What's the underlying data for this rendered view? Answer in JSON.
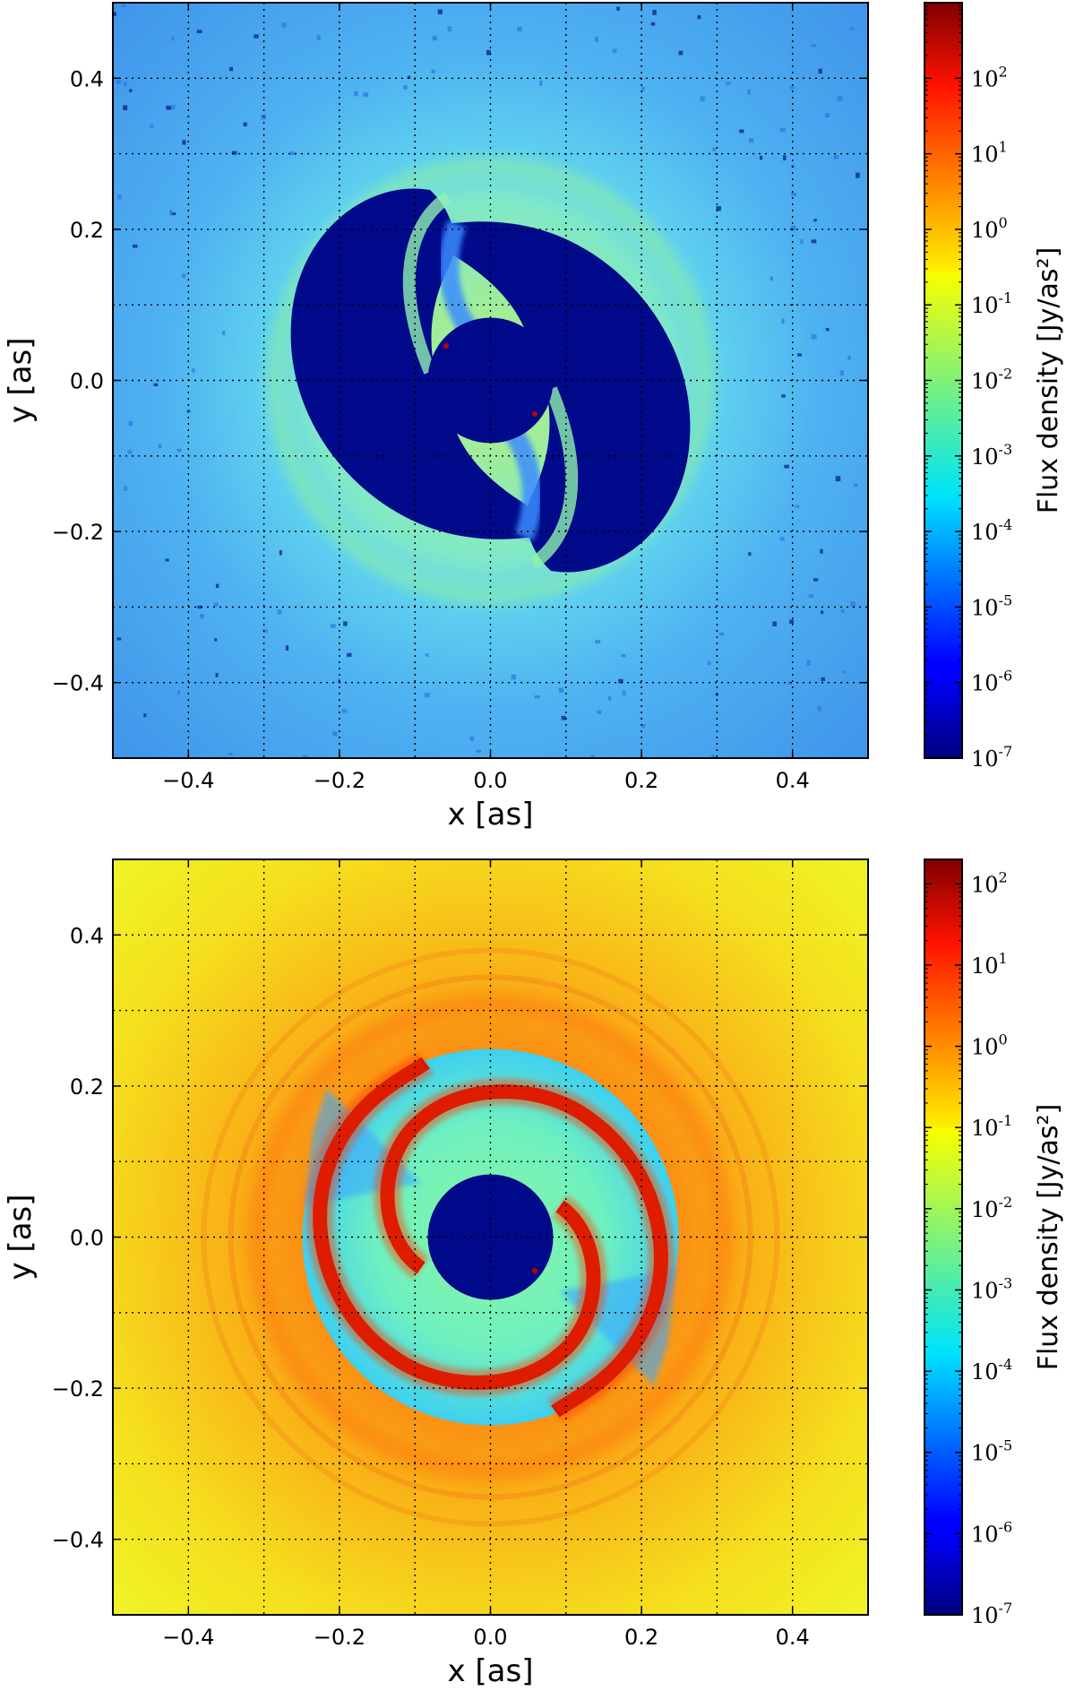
{
  "chart_data": [
    {
      "type": "heatmap",
      "xlabel": "x [as]",
      "ylabel": "y [as]",
      "xlim": [
        -0.5,
        0.5
      ],
      "ylim": [
        -0.5,
        0.5
      ],
      "x_ticks": [
        "−0.4",
        "−0.2",
        "0.0",
        "0.2",
        "0.4"
      ],
      "y_ticks": [
        "0.4",
        "0.2",
        "0.0",
        "−0.2",
        "−0.4"
      ],
      "grid": true,
      "colormap": "jet",
      "colorbar": {
        "label": "Flux density [Jy/as²]",
        "scale": "log",
        "range": [
          1e-07,
          1000
        ],
        "ticks": [
          {
            "base": "10",
            "exp": "2"
          },
          {
            "base": "10",
            "exp": "1"
          },
          {
            "base": "10",
            "exp": "0"
          },
          {
            "base": "10",
            "exp": "-1"
          },
          {
            "base": "10",
            "exp": "-2"
          },
          {
            "base": "10",
            "exp": "-3"
          },
          {
            "base": "10",
            "exp": "-4"
          },
          {
            "base": "10",
            "exp": "-5"
          },
          {
            "base": "10",
            "exp": "-6"
          },
          {
            "base": "10",
            "exp": "-7"
          }
        ]
      },
      "background_color": "#4aa6ee",
      "dark_region_color": "#000a8a"
    },
    {
      "type": "heatmap",
      "xlabel": "x [as]",
      "ylabel": "y [as]",
      "xlim": [
        -0.5,
        0.5
      ],
      "ylim": [
        -0.5,
        0.5
      ],
      "x_ticks": [
        "−0.4",
        "−0.2",
        "0.0",
        "0.2",
        "0.4"
      ],
      "y_ticks": [
        "0.4",
        "0.2",
        "0.0",
        "−0.2",
        "−0.4"
      ],
      "grid": true,
      "colormap": "jet",
      "colorbar": {
        "label": "Flux density [Jy/as²]",
        "scale": "log",
        "range": [
          1e-07,
          200
        ],
        "ticks": [
          {
            "base": "10",
            "exp": "2"
          },
          {
            "base": "10",
            "exp": "1"
          },
          {
            "base": "10",
            "exp": "0"
          },
          {
            "base": "10",
            "exp": "-1"
          },
          {
            "base": "10",
            "exp": "-2"
          },
          {
            "base": "10",
            "exp": "-3"
          },
          {
            "base": "10",
            "exp": "-4"
          },
          {
            "base": "10",
            "exp": "-5"
          },
          {
            "base": "10",
            "exp": "-6"
          },
          {
            "base": "10",
            "exp": "-7"
          }
        ]
      },
      "background_color": "#f3ea1c",
      "dark_region_color": "#000a8a"
    }
  ]
}
